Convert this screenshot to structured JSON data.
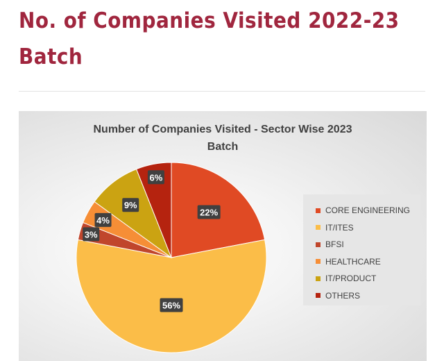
{
  "page": {
    "heading_line1": "No. of Companies Visited 2022-23",
    "heading_line2": "Batch",
    "heading_color": "#a0263e"
  },
  "chart_data": {
    "type": "pie",
    "title_line1": "Number of Companies Visited - Sector Wise 2023",
    "title_line2": "Batch",
    "legend_position": "right",
    "slices": [
      {
        "label": "CORE ENGINEERING",
        "value": 22,
        "display": "22%",
        "color": "#e04a24"
      },
      {
        "label": "IT/ITES",
        "value": 56,
        "display": "56%",
        "color": "#fbbd48"
      },
      {
        "label": "BFSI",
        "value": 3,
        "display": "3%",
        "color": "#c0462c"
      },
      {
        "label": "HEALTHCARE",
        "value": 4,
        "display": "4%",
        "color": "#f68e36"
      },
      {
        "label": "IT/PRODUCT",
        "value": 9,
        "display": "9%",
        "color": "#cba312"
      },
      {
        "label": "OTHERS",
        "value": 6,
        "display": "6%",
        "color": "#b5230f"
      }
    ]
  }
}
